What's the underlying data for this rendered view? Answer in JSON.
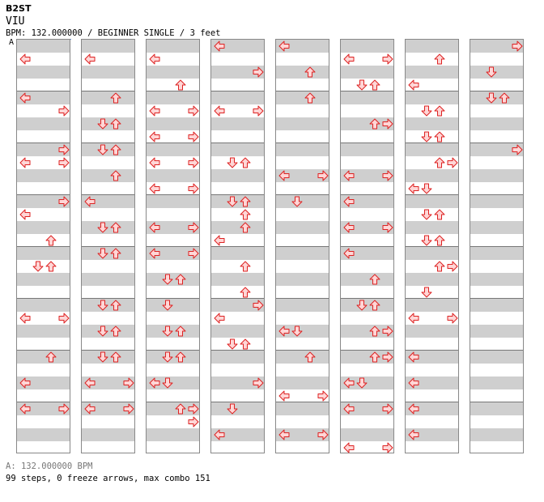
{
  "header": {
    "artist": "B2ST",
    "title": "VIU",
    "meta": "BPM: 132.000000 / BEGINNER SINGLE / 3 feet",
    "marker": "A"
  },
  "footer": {
    "bpm_line": "A: 132.000000 BPM",
    "stats_line": "99 steps, 0 freeze arrows, max combo 151"
  },
  "colors": {
    "arrow_fill": "#ffd6d6",
    "arrow_stroke": "#d22",
    "band": "#cfcfcf",
    "border": "#888"
  },
  "chart": {
    "rows_per_column": 32,
    "columns": [
      [
        [
          1,
          "L"
        ],
        [
          4,
          "L"
        ],
        [
          5,
          "R"
        ],
        [
          8,
          "R"
        ],
        [
          9,
          "L"
        ],
        [
          9,
          "R"
        ],
        [
          12,
          "R"
        ],
        [
          13,
          "L"
        ],
        [
          15,
          "U"
        ],
        [
          17,
          "D"
        ],
        [
          17,
          "U"
        ],
        [
          21,
          "L"
        ],
        [
          21,
          "R"
        ],
        [
          24,
          "U"
        ],
        [
          26,
          "L"
        ],
        [
          28,
          "L"
        ],
        [
          28,
          "R"
        ]
      ],
      [
        [
          1,
          "L"
        ],
        [
          4,
          "U"
        ],
        [
          6,
          "D"
        ],
        [
          6,
          "U"
        ],
        [
          8,
          "D"
        ],
        [
          8,
          "U"
        ],
        [
          10,
          "U"
        ],
        [
          12,
          "L"
        ],
        [
          14,
          "D"
        ],
        [
          14,
          "U"
        ],
        [
          16,
          "D"
        ],
        [
          16,
          "U"
        ],
        [
          20,
          "D"
        ],
        [
          20,
          "U"
        ],
        [
          22,
          "D"
        ],
        [
          22,
          "U"
        ],
        [
          24,
          "D"
        ],
        [
          24,
          "U"
        ],
        [
          26,
          "L"
        ],
        [
          26,
          "R"
        ],
        [
          28,
          "L"
        ],
        [
          28,
          "R"
        ]
      ],
      [
        [
          1,
          "L"
        ],
        [
          3,
          "U"
        ],
        [
          5,
          "L"
        ],
        [
          5,
          "R"
        ],
        [
          7,
          "L"
        ],
        [
          7,
          "R"
        ],
        [
          9,
          "L"
        ],
        [
          9,
          "R"
        ],
        [
          11,
          "L"
        ],
        [
          11,
          "R"
        ],
        [
          14,
          "L"
        ],
        [
          14,
          "R"
        ],
        [
          16,
          "L"
        ],
        [
          16,
          "R"
        ],
        [
          18,
          "D"
        ],
        [
          18,
          "U"
        ],
        [
          20,
          "D"
        ],
        [
          22,
          "D"
        ],
        [
          22,
          "U"
        ],
        [
          24,
          "D"
        ],
        [
          24,
          "U"
        ],
        [
          26,
          "L"
        ],
        [
          26,
          "D"
        ],
        [
          28,
          "U"
        ],
        [
          28,
          "R"
        ],
        [
          29,
          "R"
        ]
      ],
      [
        [
          0,
          "L"
        ],
        [
          2,
          "R"
        ],
        [
          5,
          "L"
        ],
        [
          5,
          "R"
        ],
        [
          9,
          "D"
        ],
        [
          9,
          "U"
        ],
        [
          12,
          "D"
        ],
        [
          12,
          "U"
        ],
        [
          13,
          "U"
        ],
        [
          14,
          "U"
        ],
        [
          15,
          "L"
        ],
        [
          17,
          "U"
        ],
        [
          19,
          "U"
        ],
        [
          20,
          "R"
        ],
        [
          21,
          "L"
        ],
        [
          23,
          "D"
        ],
        [
          23,
          "U"
        ],
        [
          26,
          "R"
        ],
        [
          28,
          "D"
        ],
        [
          30,
          "L"
        ]
      ],
      [
        [
          0,
          "L"
        ],
        [
          2,
          "U"
        ],
        [
          4,
          "U"
        ],
        [
          10,
          "L"
        ],
        [
          10,
          "R"
        ],
        [
          12,
          "D"
        ],
        [
          22,
          "L"
        ],
        [
          22,
          "D"
        ],
        [
          24,
          "U"
        ],
        [
          27,
          "L"
        ],
        [
          27,
          "R"
        ],
        [
          30,
          "L"
        ],
        [
          30,
          "R"
        ]
      ],
      [
        [
          1,
          "L"
        ],
        [
          1,
          "R"
        ],
        [
          3,
          "D"
        ],
        [
          3,
          "U"
        ],
        [
          6,
          "U"
        ],
        [
          6,
          "R"
        ],
        [
          10,
          "L"
        ],
        [
          10,
          "R"
        ],
        [
          12,
          "L"
        ],
        [
          14,
          "L"
        ],
        [
          14,
          "R"
        ],
        [
          16,
          "L"
        ],
        [
          18,
          "U"
        ],
        [
          20,
          "D"
        ],
        [
          20,
          "U"
        ],
        [
          22,
          "U"
        ],
        [
          22,
          "R"
        ],
        [
          24,
          "U"
        ],
        [
          24,
          "R"
        ],
        [
          26,
          "L"
        ],
        [
          26,
          "D"
        ],
        [
          28,
          "L"
        ],
        [
          28,
          "R"
        ],
        [
          31,
          "L"
        ],
        [
          31,
          "R"
        ]
      ],
      [
        [
          1,
          "U"
        ],
        [
          3,
          "L"
        ],
        [
          5,
          "D"
        ],
        [
          5,
          "U"
        ],
        [
          7,
          "D"
        ],
        [
          7,
          "U"
        ],
        [
          9,
          "U"
        ],
        [
          9,
          "R"
        ],
        [
          11,
          "L"
        ],
        [
          11,
          "D"
        ],
        [
          13,
          "D"
        ],
        [
          13,
          "U"
        ],
        [
          15,
          "D"
        ],
        [
          15,
          "U"
        ],
        [
          17,
          "U"
        ],
        [
          17,
          "R"
        ],
        [
          19,
          "D"
        ],
        [
          21,
          "L"
        ],
        [
          21,
          "R"
        ],
        [
          24,
          "L"
        ],
        [
          26,
          "L"
        ],
        [
          28,
          "L"
        ],
        [
          30,
          "L"
        ]
      ],
      [
        [
          0,
          "R"
        ],
        [
          2,
          "D"
        ],
        [
          4,
          "D"
        ],
        [
          4,
          "U"
        ],
        [
          8,
          "R"
        ]
      ]
    ]
  }
}
